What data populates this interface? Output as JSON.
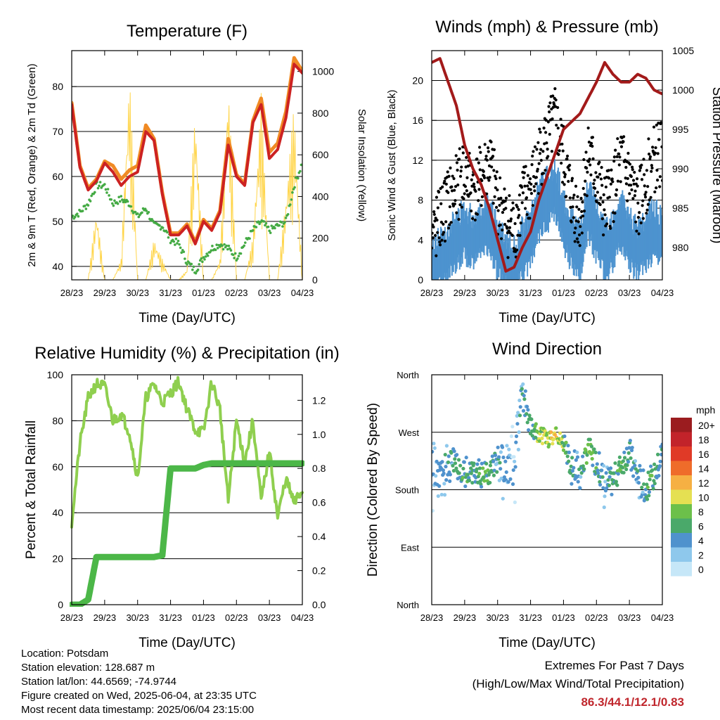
{
  "chart_data": [
    {
      "type": "line",
      "title": "Temperature (F)",
      "xlabel": "Time (Day/UTC)",
      "ylabel": "2m & 9m T (Red, Orange) & 2m Td (Green)",
      "ylabel_right": "Solar Insolation (Yellow)",
      "xticks": [
        "28/23",
        "29/23",
        "30/23",
        "31/23",
        "01/23",
        "02/23",
        "03/23",
        "04/23"
      ],
      "ylim": [
        37,
        88
      ],
      "yticks": [
        40,
        50,
        60,
        70,
        80
      ],
      "ylim_right": [
        0,
        1100
      ],
      "yticks_right": [
        0,
        200,
        400,
        600,
        800,
        1000
      ],
      "x_days": [
        0,
        0.25,
        0.5,
        0.75,
        1,
        1.25,
        1.5,
        1.75,
        2,
        2.25,
        2.5,
        2.75,
        3,
        3.25,
        3.5,
        3.75,
        4,
        4.25,
        4.5,
        4.75,
        5,
        5.25,
        5.5,
        5.75,
        6,
        6.25,
        6.5,
        6.75,
        7
      ],
      "series": [
        {
          "name": "2m T",
          "color": "#cc2222",
          "values": [
            76,
            62,
            57,
            59,
            63,
            61,
            58,
            60,
            61,
            70,
            68,
            56,
            47,
            47,
            49,
            45,
            50,
            48,
            52,
            67,
            60,
            58,
            72,
            76,
            64,
            66,
            73,
            85,
            83
          ]
        },
        {
          "name": "9m T",
          "color": "#f08a24",
          "values": [
            76,
            62,
            57,
            59,
            63,
            62,
            59,
            61,
            62,
            71,
            68,
            56,
            47,
            47,
            49,
            45,
            50,
            48,
            52,
            68,
            60,
            58,
            72,
            77,
            65,
            67,
            74,
            86,
            83
          ]
        },
        {
          "name": "2m Td",
          "color": "#44aa44",
          "values": [
            51,
            52,
            54,
            58,
            58,
            54,
            55,
            54,
            51,
            53,
            49,
            49,
            46,
            45,
            41,
            39,
            42,
            44,
            45,
            44,
            42,
            45,
            48,
            50,
            48,
            49,
            50,
            58,
            63
          ]
        },
        {
          "name": "Solar Insolation",
          "color": "#ffd54a",
          "axis": "right",
          "values": [
            0,
            0,
            0,
            350,
            0,
            0,
            100,
            1020,
            0,
            0,
            200,
            100,
            0,
            0,
            50,
            850,
            0,
            0,
            100,
            1000,
            0,
            0,
            200,
            900,
            0,
            0,
            400,
            850,
            0
          ]
        }
      ]
    },
    {
      "type": "scatter",
      "title": "Winds (mph) & Pressure (mb)",
      "xlabel": "Time (Day/UTC)",
      "ylabel": "Sonic Wind & Gust (Blue, Black)",
      "ylabel_right": "Station Pressure (Maroon)",
      "xticks": [
        "28/23",
        "29/23",
        "30/23",
        "31/23",
        "01/23",
        "02/23",
        "03/23",
        "04/23"
      ],
      "ylim": [
        0,
        23
      ],
      "yticks": [
        0,
        4,
        8,
        12,
        16,
        20
      ],
      "ylim_right": [
        975.9,
        1005
      ],
      "yticks_right": [
        980,
        985,
        990,
        995,
        1000,
        1005
      ],
      "x_days": [
        0,
        0.25,
        0.5,
        0.75,
        1,
        1.25,
        1.5,
        1.75,
        2,
        2.25,
        2.5,
        2.75,
        3,
        3.25,
        3.5,
        3.75,
        4,
        4.25,
        4.5,
        4.75,
        5,
        5.25,
        5.5,
        5.75,
        6,
        6.25,
        6.5,
        6.75,
        7
      ],
      "series": [
        {
          "name": "Sonic Wind",
          "color": "#4d93cf",
          "values": [
            2,
            3,
            4,
            5,
            6,
            5,
            6,
            7,
            4,
            3,
            2,
            4,
            5,
            8,
            9,
            10,
            7,
            5,
            4,
            8,
            6,
            4,
            5,
            7,
            5,
            4,
            5,
            6,
            5
          ]
        },
        {
          "name": "Gust",
          "color": "#000000",
          "values": [
            4,
            6,
            8,
            9,
            11,
            9,
            10,
            12,
            8,
            6,
            5,
            8,
            9,
            12,
            14,
            16,
            12,
            8,
            6,
            13,
            10,
            7,
            9,
            12,
            10,
            7,
            10,
            12,
            13
          ]
        },
        {
          "name": "Station Pressure",
          "color": "#a31a1a",
          "axis": "right",
          "values": [
            1003.5,
            1004,
            1001,
            998,
            993,
            990,
            988,
            985,
            981,
            977,
            977.5,
            980,
            982,
            986,
            989,
            992,
            995,
            996,
            997,
            999,
            1001,
            1003.5,
            1002,
            1001,
            1001,
            1002,
            1001.5,
            1000,
            999.5
          ]
        }
      ]
    },
    {
      "type": "line",
      "title": "Relative Humidity (%) & Precipitation (in)",
      "xlabel": "Time (Day/UTC)",
      "ylabel": "Percent & Total Rainfall",
      "xticks": [
        "28/23",
        "29/23",
        "30/23",
        "31/23",
        "01/23",
        "02/23",
        "03/23",
        "04/23"
      ],
      "ylim": [
        0,
        100
      ],
      "yticks": [
        0,
        20,
        40,
        60,
        80,
        100
      ],
      "ylim_right": [
        0,
        1.35
      ],
      "yticks_right": [
        "0.0",
        "0.2",
        "0.4",
        "0.6",
        "0.8",
        "1.0",
        "1.2"
      ],
      "x_days": [
        0,
        0.25,
        0.5,
        0.75,
        1,
        1.25,
        1.5,
        1.75,
        2,
        2.25,
        2.5,
        2.75,
        3,
        3.25,
        3.5,
        3.75,
        4,
        4.25,
        4.5,
        4.75,
        5,
        5.25,
        5.5,
        5.75,
        6,
        6.25,
        6.5,
        6.75,
        7
      ],
      "series": [
        {
          "name": "Relative Humidity",
          "color": "#8fcf4f",
          "values": [
            36,
            70,
            90,
            96,
            95,
            80,
            83,
            75,
            55,
            90,
            96,
            88,
            92,
            97,
            85,
            76,
            75,
            97,
            85,
            45,
            80,
            62,
            80,
            45,
            67,
            38,
            55,
            44,
            50
          ]
        },
        {
          "name": "Total Rainfall",
          "color": "#4cb748",
          "axis": "right",
          "values": [
            0,
            0,
            0.03,
            0.28,
            0.28,
            0.28,
            0.28,
            0.28,
            0.28,
            0.28,
            0.28,
            0.29,
            0.8,
            0.8,
            0.8,
            0.8,
            0.82,
            0.83,
            0.83,
            0.83,
            0.83,
            0.83,
            0.83,
            0.83,
            0.83,
            0.83,
            0.83,
            0.83,
            0.83
          ]
        }
      ]
    },
    {
      "type": "scatter",
      "title": "Wind Direction",
      "xlabel": "Time (Day/UTC)",
      "ylabel": "Direction (Colored By Speed)",
      "xticks": [
        "28/23",
        "29/23",
        "30/23",
        "31/23",
        "01/23",
        "02/23",
        "03/23",
        "04/23"
      ],
      "yticks": [
        "North",
        "East",
        "South",
        "West",
        "North"
      ],
      "ylim": [
        0,
        360
      ],
      "legend_title": "mph",
      "legend_labels": [
        "0",
        "2",
        "4",
        "6",
        "8",
        "10",
        "12",
        "14",
        "16",
        "18",
        "20+"
      ],
      "legend_colors": [
        "#c6e7f8",
        "#8ec8ec",
        "#4f92cd",
        "#4aa96a",
        "#6cc04a",
        "#e5e052",
        "#f6b043",
        "#ef6c2a",
        "#e03a27",
        "#c2232a",
        "#9b1c1f"
      ],
      "x_days": [
        0,
        0.25,
        0.5,
        0.75,
        1,
        1.25,
        1.5,
        1.75,
        2,
        2.25,
        2.5,
        2.75,
        3,
        3.25,
        3.5,
        3.75,
        4,
        4.25,
        4.5,
        4.75,
        5,
        5.25,
        5.5,
        5.75,
        6,
        6.25,
        6.5,
        6.75,
        7
      ],
      "series": [
        {
          "name": "Direction",
          "values": [
            220,
            200,
            225,
            215,
            205,
            210,
            205,
            205,
            225,
            210,
            215,
            340,
            280,
            265,
            260,
            265,
            250,
            215,
            205,
            245,
            225,
            185,
            195,
            220,
            240,
            200,
            180,
            200,
            240
          ]
        },
        {
          "name": "Speed",
          "values": [
            2,
            3,
            4,
            5,
            6,
            5,
            6,
            7,
            4,
            3,
            2,
            4,
            5,
            8,
            9,
            10,
            7,
            5,
            4,
            8,
            6,
            4,
            5,
            7,
            5,
            4,
            5,
            6,
            5
          ]
        }
      ]
    }
  ],
  "footer": {
    "location": "Location: Potsdam",
    "elevation": "Station elevation: 128.687 m",
    "latlon": "Station lat/lon: 44.6569; -74.9744",
    "created": "Figure created on Wed, 2025-06-04, at 23:35 UTC",
    "recent": "Most recent data timestamp: 2025/06/04 23:15:00"
  },
  "extremes": {
    "heading": "Extremes For Past 7 Days",
    "subheading": "(High/Low/Max Wind/Total Precipitation)",
    "values": "86.3/44.1/12.1/0.83"
  }
}
